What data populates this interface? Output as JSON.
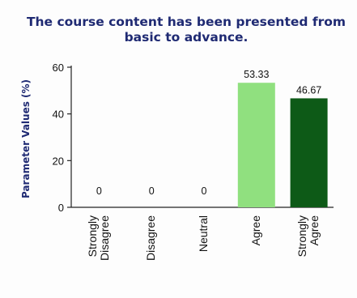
{
  "chart_data": {
    "type": "bar",
    "title": "The course content has been presented from\nbasic to advance.",
    "xlabel": "",
    "ylabel": "Parameter Values (%)",
    "ylim": [
      0,
      60
    ],
    "yticks": [
      0,
      20,
      40,
      60
    ],
    "categories": [
      "Strongly\nDisagree",
      "Disagree",
      "Neutral",
      "Agree",
      "Strongly\nAgree"
    ],
    "values": [
      0,
      0,
      0,
      53.33,
      46.67
    ],
    "value_labels": [
      "0",
      "0",
      "0",
      "53.33",
      "46.67"
    ],
    "bar_colors": [
      "#8fd67f",
      "#8fd67f",
      "#8fd67f",
      "#90e07f",
      "#0d5a17"
    ],
    "grid": false,
    "legend": "none"
  }
}
